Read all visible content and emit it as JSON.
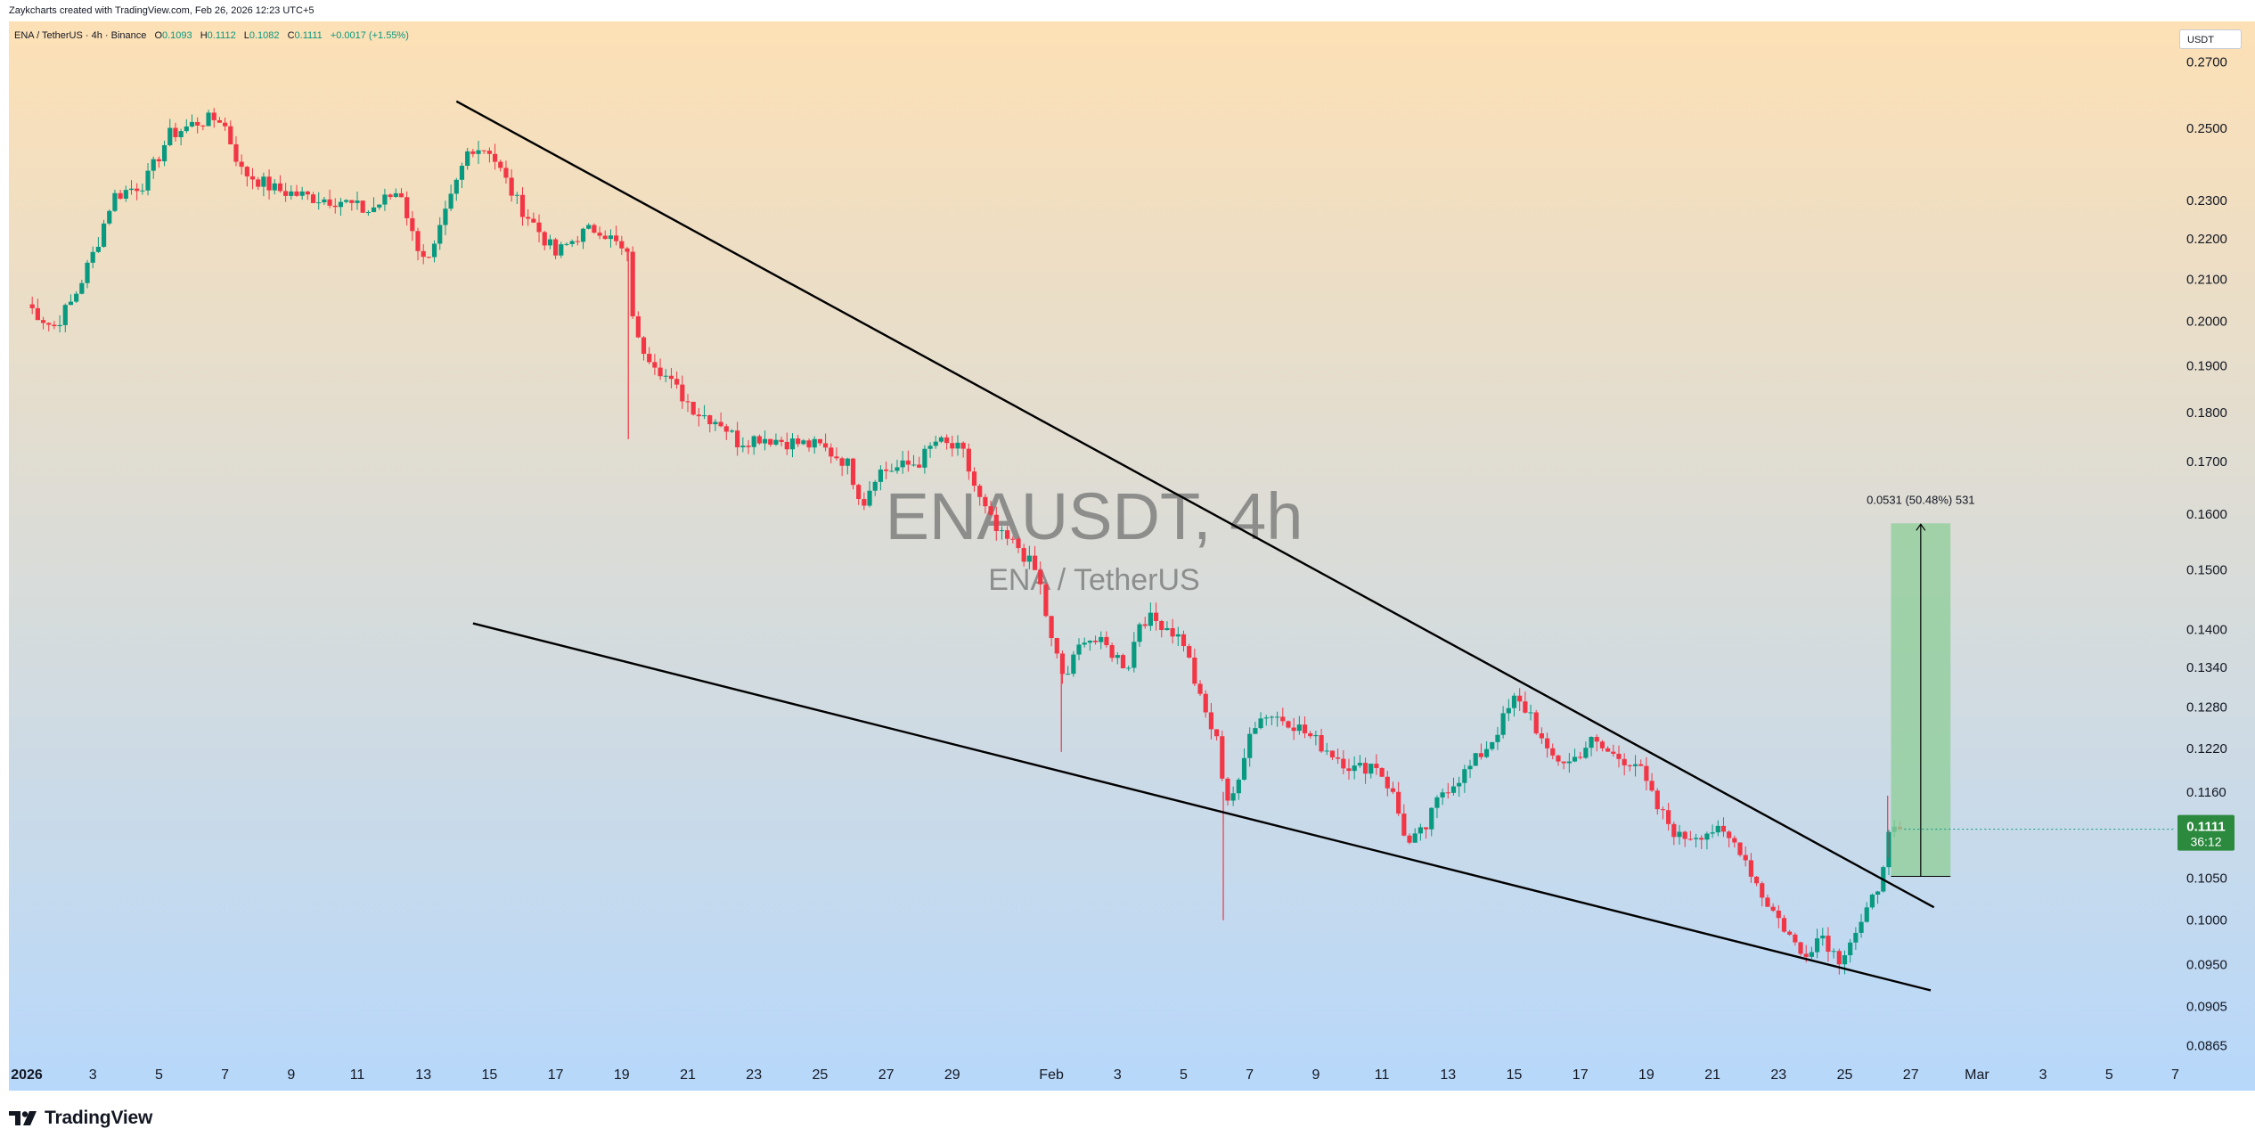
{
  "header": {
    "attribution": "Zaykcharts created with TradingView.com, Feb 26, 2026 12:23 UTC+5"
  },
  "legend": {
    "symbol": "ENA / TetherUS · 4h · Binance",
    "open_label": "O",
    "open": "0.1093",
    "high_label": "H",
    "high": "0.1112",
    "low_label": "L",
    "low": "0.1082",
    "close_label": "C",
    "close": "0.1111",
    "change": "+0.0017 (+1.55%)"
  },
  "currency_button": "USDT",
  "footer": {
    "brand": "TradingView",
    "logo_icon": "tradingview-logo-icon"
  },
  "colors": {
    "bullish": "#089981",
    "bearish": "#f23645",
    "bg_top": "#fde0b5",
    "bg_bottom": "#b7d8fb",
    "target_zone": "#8fce9a",
    "trendline": "#000000",
    "watermark": "#7f7f7f"
  },
  "chart_data": {
    "type": "candlestick",
    "title": "ENAUSDT, 4h",
    "subtitle": "ENA / TetherUS",
    "y_scale": "log",
    "ylim": [
      0.0845,
      0.283
    ],
    "y_ticks": [
      "0.2700",
      "0.2500",
      "0.2300",
      "0.2200",
      "0.2100",
      "0.2000",
      "0.1900",
      "0.1800",
      "0.1700",
      "0.1600",
      "0.1500",
      "0.1400",
      "0.1340",
      "0.1280",
      "0.1220",
      "0.1160",
      "0.1050",
      "0.1000",
      "0.0950",
      "0.0905",
      "0.0865"
    ],
    "x_ticks": [
      "2026",
      "3",
      "5",
      "7",
      "9",
      "11",
      "13",
      "15",
      "17",
      "19",
      "21",
      "23",
      "25",
      "27",
      "29",
      "Feb",
      "3",
      "5",
      "7",
      "9",
      "11",
      "13",
      "15",
      "17",
      "19",
      "21",
      "23",
      "25",
      "27",
      "Mar",
      "3",
      "5",
      "7"
    ],
    "x_range": [
      "2026-01-01",
      "2026-03-08"
    ],
    "current_price": {
      "value": "0.1111",
      "countdown": "36:12"
    },
    "path": [
      [
        "2026-01-01",
        0.204
      ],
      [
        "2026-01-01.8",
        0.1985
      ],
      [
        "2026-01-02.4",
        0.205
      ],
      [
        "2026-01-03.1",
        0.218
      ],
      [
        "2026-01-03.6",
        0.231
      ],
      [
        "2026-01-04.6",
        0.235
      ],
      [
        "2026-01-05.3",
        0.248
      ],
      [
        "2026-01-06.2",
        0.252
      ],
      [
        "2026-01-06.9",
        0.253
      ],
      [
        "2026-01-07.5",
        0.238
      ],
      [
        "2026-01-08.5",
        0.233
      ],
      [
        "2026-01-09.5",
        0.231
      ],
      [
        "2026-01-10.5",
        0.23
      ],
      [
        "2026-01-11.3",
        0.227
      ],
      [
        "2026-01-12.3",
        0.233
      ],
      [
        "2026-01-12.7",
        0.22
      ],
      [
        "2026-01-13.2",
        0.214
      ],
      [
        "2026-01-13.7",
        0.227
      ],
      [
        "2026-01-14.4",
        0.245
      ],
      [
        "2026-01-15.0",
        0.244
      ],
      [
        "2026-01-15.8",
        0.23
      ],
      [
        "2026-01-16.5",
        0.222
      ],
      [
        "2026-01-17.0",
        0.216
      ],
      [
        "2026-01-17.7",
        0.221
      ],
      [
        "2026-01-18.3",
        0.223
      ],
      [
        "2026-01-18.8",
        0.219
      ],
      [
        "2026-01-19.2",
        0.215
      ],
      [
        "2026-01-19.4",
        0.196
      ],
      [
        "2026-01-20.0",
        0.191
      ],
      [
        "2026-01-20.5",
        0.186
      ],
      [
        "2026-01-21.3",
        0.18
      ],
      [
        "2026-01-22.0",
        0.178
      ],
      [
        "2026-01-22.5",
        0.174
      ],
      [
        "2026-01-23.2",
        0.175
      ],
      [
        "2026-01-24.0",
        0.174
      ],
      [
        "2026-01-25.0",
        0.173
      ],
      [
        "2026-01-25.8",
        0.17
      ],
      [
        "2026-01-26.3",
        0.162
      ],
      [
        "2026-01-26.7",
        0.168
      ],
      [
        "2026-01-27.5",
        0.169
      ],
      [
        "2026-01-28.0",
        0.17
      ],
      [
        "2026-01-28.5",
        0.174
      ],
      [
        "2026-01-29.3",
        0.172
      ],
      [
        "2026-01-29.8",
        0.163
      ],
      [
        "2026-01-30.4",
        0.156
      ],
      [
        "2026-01-31.0",
        0.154
      ],
      [
        "2026-01-31.6",
        0.149
      ],
      [
        "2026-02-01.0",
        0.138
      ],
      [
        "2026-02-01.4",
        0.132
      ],
      [
        "2026-02-02.0",
        0.139
      ],
      [
        "2026-02-02.7",
        0.137
      ],
      [
        "2026-02-03.3",
        0.134
      ],
      [
        "2026-02-03.7",
        0.142
      ],
      [
        "2026-02-04.4",
        0.141
      ],
      [
        "2026-02-05.0",
        0.138
      ],
      [
        "2026-02-05.5",
        0.129
      ],
      [
        "2026-02-06.0",
        0.123
      ],
      [
        "2026-02-06.3",
        0.115
      ],
      [
        "2026-02-06.7",
        0.117
      ],
      [
        "2026-02-07.0",
        0.125
      ],
      [
        "2026-02-07.5",
        0.127
      ],
      [
        "2026-02-08.2",
        0.126
      ],
      [
        "2026-02-09.0",
        0.123
      ],
      [
        "2026-02-09.6",
        0.121
      ],
      [
        "2026-02-10.2",
        0.119
      ],
      [
        "2026-02-10.8",
        0.12
      ],
      [
        "2026-02-11.3",
        0.116
      ],
      [
        "2026-02-11.8",
        0.109
      ],
      [
        "2026-02-12.3",
        0.111
      ],
      [
        "2026-02-12.8",
        0.116
      ],
      [
        "2026-02-13.6",
        0.119
      ],
      [
        "2026-02-14.3",
        0.123
      ],
      [
        "2026-02-15.0",
        0.129
      ],
      [
        "2026-02-15.5",
        0.127
      ],
      [
        "2026-02-16.0",
        0.121
      ],
      [
        "2026-02-16.7",
        0.12
      ],
      [
        "2026-02-17.3",
        0.123
      ],
      [
        "2026-02-18.0",
        0.121
      ],
      [
        "2026-02-18.7",
        0.12
      ],
      [
        "2026-02-19.3",
        0.114
      ],
      [
        "2026-02-20.0",
        0.11
      ],
      [
        "2026-02-21.0",
        0.111
      ],
      [
        "2026-02-21.8",
        0.109
      ],
      [
        "2026-02-22.5",
        0.103
      ],
      [
        "2026-02-23.2",
        0.099
      ],
      [
        "2026-02-23.7",
        0.096
      ],
      [
        "2026-02-24.3",
        0.0985
      ],
      [
        "2026-02-24.8",
        0.0955
      ],
      [
        "2026-02-25.2",
        0.098
      ],
      [
        "2026-02-25.6",
        0.1
      ],
      [
        "2026-02-26.0",
        0.104
      ],
      [
        "2026-02-26.3",
        0.11
      ],
      [
        "2026-02-26.8",
        0.1111
      ]
    ],
    "wicks": [
      [
        "2026-01-19.2",
        0.1745,
        0.2175
      ],
      [
        "2026-02-01.3",
        0.1215,
        0.135
      ],
      [
        "2026-02-06.2",
        0.1,
        0.116
      ],
      [
        "2026-02-26.3",
        0.1075,
        0.1155
      ]
    ],
    "upper_trendline": {
      "from": [
        "2026-01-14.0",
        0.258
      ],
      "to": [
        "2026-02-27.7",
        0.1015
      ]
    },
    "lower_trendline": {
      "from": [
        "2026-01-14.5",
        0.141
      ],
      "to": [
        "2026-02-27.6",
        0.0922
      ]
    },
    "target_box": {
      "from_date": "2026-02-26.4",
      "to_date": "2026-02-28.2",
      "bottom": 0.1052,
      "top": 0.1583,
      "label": "0.0531 (50.48%) 531"
    }
  }
}
